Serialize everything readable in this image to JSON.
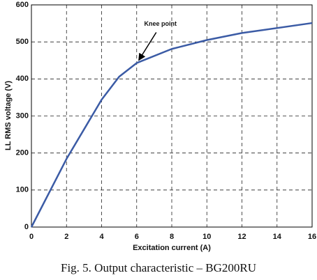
{
  "chart_data": {
    "type": "line",
    "caption": "Fig. 5. Output characteristic – BG200RU",
    "x_label": "Excitation current (A)",
    "y_label": "LL RMS voltage (V)",
    "annotation": "Knee point",
    "x": [
      0,
      2,
      4,
      5,
      6,
      8,
      10,
      12,
      16
    ],
    "series": [
      {
        "name": "Output characteristic",
        "color": "#3b5ba5",
        "values": [
          0,
          184,
          344,
          406,
          443,
          481,
          505,
          524,
          551
        ]
      }
    ],
    "xlim": [
      0,
      16
    ],
    "xticks": [
      0,
      2,
      4,
      6,
      8,
      10,
      12,
      14,
      16
    ],
    "ylim": [
      0,
      600
    ],
    "yticks": [
      0,
      100,
      200,
      300,
      400,
      500,
      600
    ],
    "grid": true
  }
}
